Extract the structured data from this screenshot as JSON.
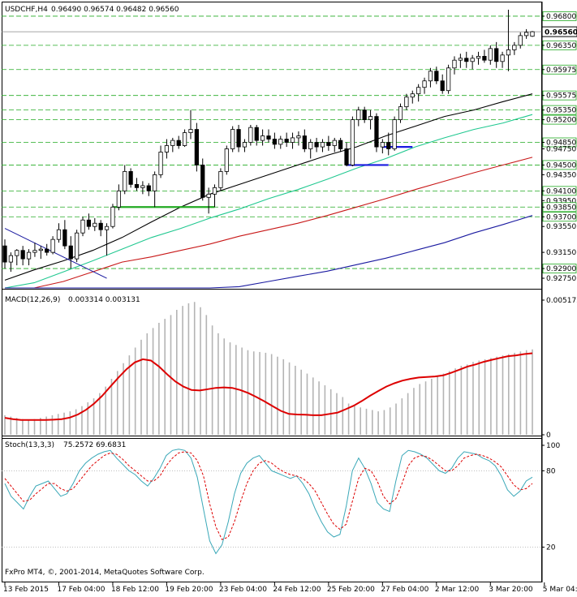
{
  "header": {
    "symbol": "USDCHF,H4",
    "ohlc": "0.96490 0.96574 0.96482 0.96560"
  },
  "copyright": "FxPro MT4, ©, 2001-2014, MetaQuotes Software Corp.",
  "colors": {
    "bull": "#000000",
    "bear": "#000000",
    "ma_fast": "#000000",
    "ma_mid": "#20c890",
    "ma_slow": "#c81818",
    "ma_slowest": "#1a1aa0",
    "trendline": "#1a1aa0",
    "level_green": "#22aa22",
    "level_blue": "#1a1ae0",
    "grid_dash": "#22aa22",
    "macd_signal": "#dd0000",
    "macd_hist": "#b4b4b4",
    "stoch_main": "#3aa8b8",
    "stoch_signal": "#dd0000"
  },
  "chart_data": [
    {
      "type": "candlestick",
      "title": "USDCHF,H4",
      "ylim": [
        0.926,
        0.97
      ],
      "current_price": "0.96560",
      "current_value": 0.9656,
      "price_labels": [
        {
          "label": "0.96800",
          "value": 0.968,
          "boxed": true
        },
        {
          "label": "0.96350",
          "value": 0.9635,
          "boxed": true
        },
        {
          "label": "0.95975",
          "value": 0.95975,
          "boxed": true
        },
        {
          "label": "0.95575",
          "value": 0.95575,
          "boxed": true
        },
        {
          "label": "0.95350",
          "value": 0.9535,
          "boxed": true
        },
        {
          "label": "0.95200",
          "value": 0.952,
          "boxed": true
        },
        {
          "label": "0.94850",
          "value": 0.9485,
          "boxed": true
        },
        {
          "label": "0.94750",
          "value": 0.9475,
          "boxed": false
        },
        {
          "label": "0.94500",
          "value": 0.945,
          "boxed": true
        },
        {
          "label": "0.94350",
          "value": 0.9435,
          "boxed": false
        },
        {
          "label": "0.94100",
          "value": 0.941,
          "boxed": true
        },
        {
          "label": "0.93950",
          "value": 0.9395,
          "boxed": false
        },
        {
          "label": "0.93850",
          "value": 0.9385,
          "boxed": true
        },
        {
          "label": "0.93700",
          "value": 0.937,
          "boxed": true
        },
        {
          "label": "0.93550",
          "value": 0.9355,
          "boxed": false
        },
        {
          "label": "0.93150",
          "value": 0.9315,
          "boxed": false
        },
        {
          "label": "0.92900",
          "value": 0.929,
          "boxed": true
        },
        {
          "label": "0.92750",
          "value": 0.9275,
          "boxed": false
        }
      ],
      "candles": [
        [
          0.9325,
          0.9335,
          0.929,
          0.93
        ],
        [
          0.93,
          0.9315,
          0.9285,
          0.931
        ],
        [
          0.931,
          0.932,
          0.9295,
          0.9318
        ],
        [
          0.9318,
          0.9325,
          0.9295,
          0.9305
        ],
        [
          0.9305,
          0.932,
          0.9295,
          0.9315
        ],
        [
          0.9315,
          0.933,
          0.9308,
          0.9318
        ],
        [
          0.9318,
          0.9325,
          0.9305,
          0.932
        ],
        [
          0.932,
          0.9328,
          0.931,
          0.9315
        ],
        [
          0.9315,
          0.934,
          0.9312,
          0.9335
        ],
        [
          0.9335,
          0.936,
          0.933,
          0.935
        ],
        [
          0.935,
          0.9365,
          0.932,
          0.9325
        ],
        [
          0.9325,
          0.934,
          0.929,
          0.9305
        ],
        [
          0.9305,
          0.935,
          0.93,
          0.9345
        ],
        [
          0.9345,
          0.937,
          0.934,
          0.9365
        ],
        [
          0.9365,
          0.9375,
          0.935,
          0.9355
        ],
        [
          0.9355,
          0.9368,
          0.9348,
          0.936
        ],
        [
          0.936,
          0.9365,
          0.934,
          0.935
        ],
        [
          0.935,
          0.936,
          0.931,
          0.9355
        ],
        [
          0.9355,
          0.939,
          0.9352,
          0.9385
        ],
        [
          0.9385,
          0.942,
          0.938,
          0.941
        ],
        [
          0.941,
          0.945,
          0.9405,
          0.944
        ],
        [
          0.944,
          0.9445,
          0.9415,
          0.942
        ],
        [
          0.942,
          0.943,
          0.941,
          0.9415
        ],
        [
          0.9415,
          0.9425,
          0.9405,
          0.9418
        ],
        [
          0.9418,
          0.9422,
          0.9402,
          0.941
        ],
        [
          0.941,
          0.944,
          0.9385,
          0.9435
        ],
        [
          0.9435,
          0.948,
          0.943,
          0.947
        ],
        [
          0.947,
          0.949,
          0.946,
          0.948
        ],
        [
          0.948,
          0.9492,
          0.947,
          0.9488
        ],
        [
          0.9488,
          0.9495,
          0.9475,
          0.948
        ],
        [
          0.948,
          0.9505,
          0.9478,
          0.95
        ],
        [
          0.95,
          0.9535,
          0.949,
          0.9505
        ],
        [
          0.9505,
          0.9515,
          0.944,
          0.945
        ],
        [
          0.945,
          0.946,
          0.9395,
          0.94
        ],
        [
          0.94,
          0.9415,
          0.9375,
          0.9405
        ],
        [
          0.9405,
          0.942,
          0.9385,
          0.9415
        ],
        [
          0.9415,
          0.9445,
          0.941,
          0.944
        ],
        [
          0.944,
          0.948,
          0.9435,
          0.9475
        ],
        [
          0.9475,
          0.951,
          0.947,
          0.9505
        ],
        [
          0.9505,
          0.9512,
          0.947,
          0.9478
        ],
        [
          0.9478,
          0.949,
          0.947,
          0.9485
        ],
        [
          0.9485,
          0.9512,
          0.948,
          0.9508
        ],
        [
          0.9508,
          0.9512,
          0.948,
          0.9488
        ],
        [
          0.9488,
          0.9505,
          0.948,
          0.9495
        ],
        [
          0.9495,
          0.9505,
          0.9485,
          0.949
        ],
        [
          0.949,
          0.95,
          0.9475,
          0.9482
        ],
        [
          0.9482,
          0.9495,
          0.9475,
          0.949
        ],
        [
          0.949,
          0.95,
          0.9478,
          0.9485
        ],
        [
          0.9485,
          0.95,
          0.9475,
          0.9492
        ],
        [
          0.9492,
          0.9502,
          0.948,
          0.9495
        ],
        [
          0.9495,
          0.9505,
          0.947,
          0.9475
        ],
        [
          0.9475,
          0.949,
          0.946,
          0.9485
        ],
        [
          0.9485,
          0.9492,
          0.947,
          0.9478
        ],
        [
          0.9478,
          0.949,
          0.947,
          0.9485
        ],
        [
          0.9485,
          0.9495,
          0.9472,
          0.948
        ],
        [
          0.948,
          0.9492,
          0.947,
          0.9488
        ],
        [
          0.9488,
          0.9492,
          0.947,
          0.9475
        ],
        [
          0.9475,
          0.9485,
          0.9448,
          0.945
        ],
        [
          0.945,
          0.9525,
          0.9448,
          0.952
        ],
        [
          0.952,
          0.954,
          0.951,
          0.9535
        ],
        [
          0.9535,
          0.954,
          0.9515,
          0.952
        ],
        [
          0.952,
          0.9535,
          0.9505,
          0.9525
        ],
        [
          0.9525,
          0.953,
          0.947,
          0.9478
        ],
        [
          0.9478,
          0.949,
          0.9468,
          0.9485
        ],
        [
          0.9485,
          0.95,
          0.9465,
          0.9475
        ],
        [
          0.9475,
          0.9525,
          0.9472,
          0.952
        ],
        [
          0.952,
          0.9545,
          0.9515,
          0.954
        ],
        [
          0.954,
          0.956,
          0.9535,
          0.9555
        ],
        [
          0.9555,
          0.9565,
          0.9545,
          0.956
        ],
        [
          0.956,
          0.9575,
          0.9548,
          0.957
        ],
        [
          0.957,
          0.9585,
          0.956,
          0.958
        ],
        [
          0.958,
          0.96,
          0.957,
          0.9595
        ],
        [
          0.9595,
          0.9602,
          0.9575,
          0.958
        ],
        [
          0.958,
          0.959,
          0.956,
          0.9565
        ],
        [
          0.9565,
          0.9605,
          0.956,
          0.96
        ],
        [
          0.96,
          0.9618,
          0.959,
          0.9612
        ],
        [
          0.9612,
          0.9622,
          0.96,
          0.9615
        ],
        [
          0.9615,
          0.9625,
          0.96,
          0.961
        ],
        [
          0.961,
          0.962,
          0.9598,
          0.9615
        ],
        [
          0.9615,
          0.9625,
          0.9605,
          0.9618
        ],
        [
          0.9618,
          0.9628,
          0.9608,
          0.9612
        ],
        [
          0.9612,
          0.9635,
          0.9605,
          0.963
        ],
        [
          0.963,
          0.964,
          0.96,
          0.961
        ],
        [
          0.961,
          0.9625,
          0.96,
          0.962
        ],
        [
          0.962,
          0.969,
          0.9595,
          0.9628
        ],
        [
          0.9628,
          0.964,
          0.962,
          0.9635
        ],
        [
          0.9635,
          0.9655,
          0.963,
          0.965
        ],
        [
          0.965,
          0.966,
          0.9645,
          0.9655
        ],
        [
          0.9649,
          0.9657,
          0.9648,
          0.9656
        ]
      ],
      "moving_averages": [
        {
          "color_key": "ma_fast",
          "values": [
            0.9272,
            0.9288,
            0.9302,
            0.9318,
            0.9338,
            0.9362,
            0.9385,
            0.9405,
            0.942,
            0.9435,
            0.945,
            0.9465,
            0.9478,
            0.9495,
            0.951,
            0.9525,
            0.9535,
            0.9548,
            0.956
          ]
        },
        {
          "color_key": "ma_mid",
          "values": [
            0.9255,
            0.9268,
            0.9285,
            0.9302,
            0.932,
            0.9338,
            0.9352,
            0.9368,
            0.9382,
            0.9398,
            0.9412,
            0.9428,
            0.9445,
            0.946,
            0.9478,
            0.9492,
            0.9505,
            0.9515,
            0.9528
          ]
        },
        {
          "color_key": "ma_slow",
          "values": [
            0.924,
            0.9255,
            0.927,
            0.9285,
            0.93,
            0.9308,
            0.9318,
            0.9328,
            0.934,
            0.935,
            0.936,
            0.9372,
            0.9385,
            0.9398,
            0.9412,
            0.9425,
            0.9438,
            0.945,
            0.9462
          ]
        },
        {
          "color_key": "ma_slowest",
          "values": [
            0.918,
            0.919,
            0.92,
            0.9212,
            0.9222,
            0.9232,
            0.9242,
            0.9252,
            0.9262,
            0.927,
            0.9278,
            0.9286,
            0.9296,
            0.9306,
            0.9318,
            0.933,
            0.9345,
            0.9358,
            0.9372
          ]
        }
      ],
      "trendline": {
        "from": [
          0,
          0.9352
        ],
        "to": [
          17,
          0.9275
        ]
      },
      "levels": [
        {
          "color_key": "level_green",
          "from": 18,
          "to": 35,
          "value": 0.9385
        },
        {
          "color_key": "level_blue",
          "from": 57,
          "to": 64,
          "value": 0.945
        },
        {
          "color_key": "level_blue",
          "from": 63,
          "to": 68,
          "value": 0.9478
        }
      ],
      "x_ticks": [
        {
          "label": "13 Feb 2015",
          "index": 0
        },
        {
          "label": "17 Feb 04:00",
          "index": 9
        },
        {
          "label": "18 Feb 12:00",
          "index": 18
        },
        {
          "label": "19 Feb 20:00",
          "index": 27
        },
        {
          "label": "23 Feb 04:00",
          "index": 36
        },
        {
          "label": "24 Feb 12:00",
          "index": 45
        },
        {
          "label": "25 Feb 20:00",
          "index": 54
        },
        {
          "label": "27 Feb 04:00",
          "index": 63
        },
        {
          "label": "2 Mar 12:00",
          "index": 72
        },
        {
          "label": "3 Mar 20:00",
          "index": 81
        },
        {
          "label": "5 Mar 04:00",
          "index": 90
        }
      ]
    },
    {
      "type": "bar",
      "title": "MACD(12,26,9)",
      "values_label": "0.003314 0.003131",
      "ylim": [
        0,
        0.005172
      ],
      "y_ticks": [
        {
          "label": "0.005172",
          "value": 0.005172
        },
        {
          "label": "0",
          "value": 0
        }
      ],
      "histogram": [
        0.00075,
        0.0007,
        0.00065,
        0.0006,
        0.00058,
        0.0006,
        0.00065,
        0.0007,
        0.00075,
        0.0008,
        0.00085,
        0.0009,
        0.00098,
        0.0011,
        0.00125,
        0.0014,
        0.0016,
        0.00185,
        0.00215,
        0.00245,
        0.00275,
        0.00305,
        0.00335,
        0.00365,
        0.0039,
        0.0041,
        0.0043,
        0.00445,
        0.0046,
        0.0048,
        0.00495,
        0.00505,
        0.0051,
        0.0049,
        0.0046,
        0.0042,
        0.0039,
        0.0037,
        0.00355,
        0.00345,
        0.00335,
        0.00325,
        0.0032,
        0.00318,
        0.00315,
        0.0031,
        0.003,
        0.0029,
        0.00278,
        0.00265,
        0.0025,
        0.00235,
        0.0022,
        0.00205,
        0.0019,
        0.00175,
        0.0016,
        0.00145,
        0.0012,
        0.0011,
        0.00105,
        0.001,
        0.00095,
        0.0009,
        0.00095,
        0.00105,
        0.0012,
        0.0014,
        0.0016,
        0.0018,
        0.00195,
        0.00205,
        0.00215,
        0.00225,
        0.00235,
        0.00245,
        0.00255,
        0.00265,
        0.0027,
        0.0028,
        0.00285,
        0.0029,
        0.00295,
        0.003,
        0.00305,
        0.0031,
        0.00315,
        0.0032,
        0.00325,
        0.00328
      ],
      "signal": [
        0.00065,
        0.0006,
        0.00057,
        0.00057,
        0.00057,
        0.00057,
        0.00058,
        0.0006,
        0.00066,
        0.00078,
        0.00096,
        0.0012,
        0.0015,
        0.00185,
        0.0022,
        0.00252,
        0.00278,
        0.0029,
        0.00285,
        0.00262,
        0.00232,
        0.00205,
        0.00185,
        0.00172,
        0.0017,
        0.00175,
        0.0018,
        0.00182,
        0.0018,
        0.00172,
        0.0016,
        0.00145,
        0.00128,
        0.0011,
        0.00092,
        0.0008,
        0.00078,
        0.00077,
        0.00075,
        0.00075,
        0.0008,
        0.00085,
        0.00098,
        0.00112,
        0.0013,
        0.0015,
        0.00168,
        0.00185,
        0.00198,
        0.00208,
        0.00215,
        0.0022,
        0.00222,
        0.00224,
        0.00228,
        0.00238,
        0.0025,
        0.00262,
        0.0027,
        0.0028,
        0.00288,
        0.00295,
        0.00302,
        0.00305,
        0.0031,
        0.00313
      ]
    },
    {
      "type": "line",
      "title": "Stoch(13,3,3)",
      "values_label": "75.2572 69.6831",
      "ylim": [
        0,
        100
      ],
      "y_ticks": [
        {
          "label": "100",
          "value": 100
        },
        {
          "label": "80",
          "value": 80
        },
        {
          "label": "20",
          "value": 20
        }
      ],
      "main": [
        70,
        60,
        55,
        50,
        60,
        68,
        70,
        72,
        66,
        60,
        62,
        70,
        80,
        86,
        90,
        93,
        95,
        96,
        90,
        85,
        80,
        77,
        72,
        68,
        74,
        82,
        92,
        96,
        97,
        96,
        90,
        75,
        50,
        25,
        15,
        22,
        40,
        62,
        78,
        86,
        90,
        92,
        86,
        80,
        78,
        76,
        74,
        76,
        70,
        62,
        50,
        40,
        32,
        28,
        30,
        52,
        80,
        90,
        82,
        70,
        55,
        50,
        48,
        72,
        92,
        96,
        95,
        93,
        90,
        85,
        80,
        78,
        82,
        90,
        95,
        94,
        93,
        90,
        88,
        84,
        76,
        65,
        60,
        64,
        72,
        75
      ],
      "signal": [
        74,
        68,
        62,
        56,
        57,
        62,
        66,
        70,
        70,
        66,
        64,
        66,
        72,
        78,
        84,
        88,
        92,
        94,
        93,
        89,
        84,
        80,
        76,
        72,
        72,
        76,
        84,
        90,
        94,
        95,
        94,
        88,
        76,
        54,
        36,
        26,
        28,
        40,
        56,
        70,
        80,
        86,
        88,
        86,
        82,
        79,
        77,
        76,
        74,
        70,
        64,
        55,
        46,
        38,
        34,
        38,
        56,
        74,
        82,
        80,
        72,
        60,
        54,
        58,
        70,
        84,
        90,
        92,
        91,
        88,
        84,
        80,
        80,
        84,
        90,
        92,
        93,
        92,
        90,
        87,
        83,
        76,
        69,
        65,
        66,
        70
      ]
    }
  ]
}
